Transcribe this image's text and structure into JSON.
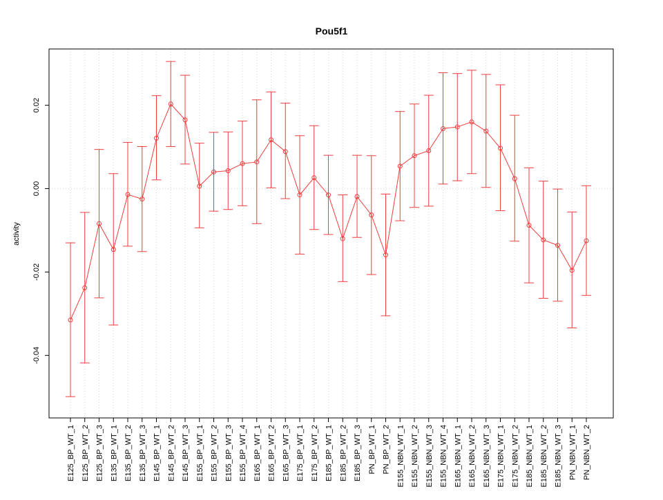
{
  "chart_data": {
    "type": "line",
    "title": "Pou5f1",
    "xlabel": "",
    "ylabel": "activity",
    "ylim": [
      -0.055,
      0.0335
    ],
    "yticks": [
      -0.04,
      -0.02,
      0.0,
      0.02
    ],
    "ytick_labels": [
      "-0.04",
      "-0.02",
      "0.00",
      "0.02"
    ],
    "grid": true,
    "reference_line": 0.0,
    "colors": {
      "series": "#f03c3c",
      "grid": "#d3d3d3",
      "axis": "#000000"
    },
    "categories": [
      "E125_BP_WT_1",
      "E125_BP_WT_2",
      "E125_BP_WT_3",
      "E135_BP_WT_1",
      "E135_BP_WT_2",
      "E135_BP_WT_3",
      "E145_BP_WT_1",
      "E145_BP_WT_2",
      "E145_BP_WT_3",
      "E155_BP_WT_1",
      "E155_BP_WT_2",
      "E155_BP_WT_3",
      "E155_BP_WT_4",
      "E165_BP_WT_1",
      "E165_BP_WT_2",
      "E165_BP_WT_3",
      "E175_BP_WT_1",
      "E175_BP_WT_2",
      "E185_BP_WT_1",
      "E185_BP_WT_2",
      "E185_BP_WT_3",
      "PN_BP_WT_1",
      "PN_BP_WT_2",
      "E155_NBN_WT_1",
      "E155_NBN_WT_2",
      "E155_NBN_WT_3",
      "E155_NBN_WT_4",
      "E165_NBN_WT_1",
      "E165_NBN_WT_2",
      "E165_NBN_WT_3",
      "E175_NBN_WT_1",
      "E175_NBN_WT_2",
      "E185_NBN_WT_1",
      "E185_NBN_WT_2",
      "E185_NBN_WT_3",
      "PN_NBN_WT_1",
      "PN_NBN_WT_2"
    ],
    "values": [
      -0.0315,
      -0.0238,
      -0.0084,
      -0.0146,
      -0.0014,
      -0.0025,
      0.0121,
      0.0203,
      0.0165,
      0.0006,
      0.004,
      0.0043,
      0.006,
      0.0064,
      0.0117,
      0.0089,
      -0.0015,
      0.0026,
      -0.0015,
      -0.012,
      -0.0019,
      -0.0063,
      -0.0159,
      0.0054,
      0.0079,
      0.0091,
      0.0144,
      0.0148,
      0.016,
      0.0138,
      0.0097,
      0.0024,
      -0.0088,
      -0.0123,
      -0.0136,
      -0.0196,
      -0.0125
    ],
    "err_upper": [
      -0.013,
      -0.0057,
      0.0094,
      0.0036,
      0.0111,
      0.0101,
      0.0223,
      0.0305,
      0.0272,
      0.0109,
      0.0135,
      0.0136,
      0.0162,
      0.0213,
      0.0232,
      0.0205,
      0.0127,
      0.0151,
      0.008,
      -0.0015,
      0.008,
      0.0079,
      -0.0013,
      0.0185,
      0.0203,
      0.0224,
      0.0278,
      0.0276,
      0.0284,
      0.0274,
      0.0249,
      0.0176,
      0.005,
      0.0018,
      -0.0001,
      -0.0056,
      0.0007
    ],
    "err_lower": [
      -0.0499,
      -0.0418,
      -0.0262,
      -0.0327,
      -0.0138,
      -0.0151,
      0.0021,
      0.0101,
      0.0059,
      -0.0094,
      -0.0054,
      -0.005,
      -0.0041,
      -0.0084,
      0.0002,
      -0.0024,
      -0.0157,
      -0.0098,
      -0.011,
      -0.0223,
      -0.0117,
      -0.0206,
      -0.0305,
      -0.0077,
      -0.0045,
      -0.0042,
      0.0011,
      0.0019,
      0.0036,
      0.0003,
      -0.0053,
      -0.0126,
      -0.0226,
      -0.0263,
      -0.027,
      -0.0334,
      -0.0256
    ]
  }
}
